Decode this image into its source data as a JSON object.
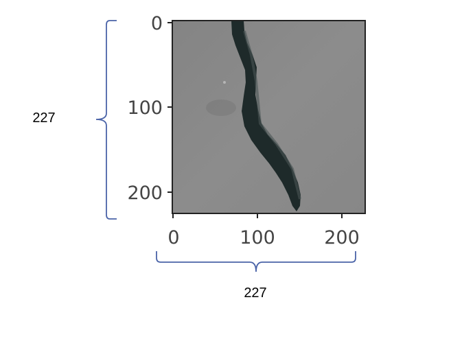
{
  "image": {
    "subject": "crack-in-concrete",
    "background_color": "#8a8a8a",
    "crack_color": "#1e2a2a",
    "frame_color": "#222222"
  },
  "axes": {
    "y_ticks": [
      "0",
      "100",
      "200"
    ],
    "x_ticks": [
      "0",
      "100",
      "200"
    ]
  },
  "dimensions": {
    "height_label": "227",
    "width_label": "227",
    "bracket_color": "#4a63a8"
  }
}
